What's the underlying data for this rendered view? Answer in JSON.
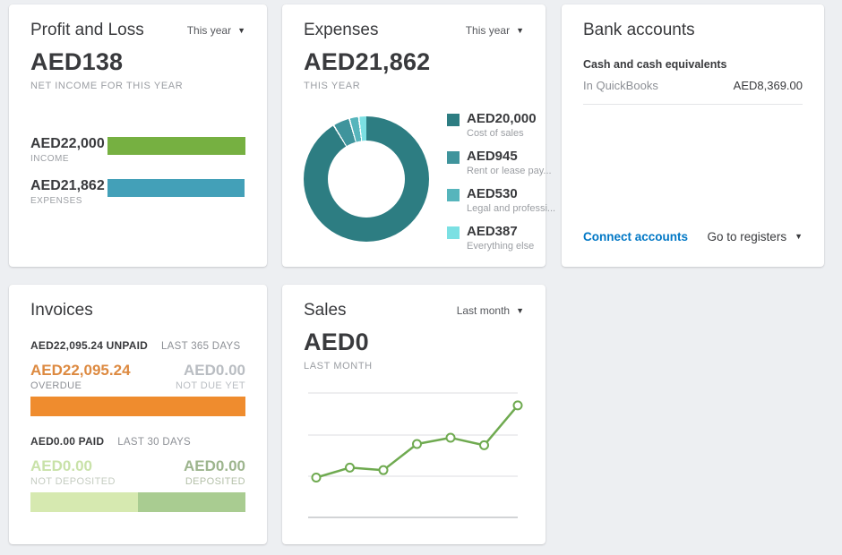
{
  "icons": {
    "dropdown": "▼"
  },
  "colors": {
    "background": "#edeff2",
    "link_blue": "#0077c5",
    "text_dark": "#393a3d",
    "text_gray": "#8d9096"
  },
  "profit_loss": {
    "title": "Profit and Loss",
    "period_selector": "This year",
    "net_income_value": "AED138",
    "net_income_label": "NET INCOME FOR THIS YEAR",
    "chart_data": {
      "type": "bar",
      "categories": [
        "INCOME",
        "EXPENSES"
      ],
      "values": [
        22000,
        21862
      ],
      "value_labels": [
        "AED22,000",
        "AED21,862"
      ],
      "colors": [
        "#76b041",
        "#43a0b8"
      ],
      "xlim": [
        0,
        22000
      ]
    }
  },
  "expenses": {
    "title": "Expenses",
    "period_selector": "This year",
    "total_value": "AED21,862",
    "total_label": "THIS YEAR",
    "chart_data": {
      "type": "pie",
      "style": "donut",
      "labels": [
        "Cost of sales",
        "Rent or lease pay...",
        "Legal and professi...",
        "Everything else"
      ],
      "values": [
        20000,
        945,
        530,
        387
      ],
      "value_labels": [
        "AED20,000",
        "AED945",
        "AED530",
        "AED387"
      ],
      "colors": [
        "#2d7d82",
        "#3f949c",
        "#56b5bc",
        "#7be0e3"
      ],
      "legend_position": "right"
    }
  },
  "bank_accounts": {
    "title": "Bank accounts",
    "account_name": "Cash and cash equivalents",
    "balance_source": "In QuickBooks",
    "balance_value": "AED8,369.00",
    "connect_link": "Connect accounts",
    "registers_link": "Go to registers"
  },
  "invoices": {
    "title": "Invoices",
    "unpaid_summary": "AED22,095.24 UNPAID",
    "unpaid_period": "LAST 365 DAYS",
    "overdue_value": "AED22,095.24",
    "overdue_label": "OVERDUE",
    "not_due_value": "AED0.00",
    "not_due_label": "NOT DUE YET",
    "paid_summary": "AED0.00 PAID",
    "paid_period": "LAST 30 DAYS",
    "not_deposited_value": "AED0.00",
    "not_deposited_label": "NOT DEPOSITED",
    "deposited_value": "AED0.00",
    "deposited_label": "DEPOSITED",
    "chart_data": {
      "type": "bar",
      "bars": [
        {
          "name": "unpaid",
          "segments": [
            {
              "label": "OVERDUE",
              "value": 22095.24,
              "color": "#ef8c2e"
            },
            {
              "label": "NOT DUE YET",
              "value": 0,
              "color": "#f5f6f7"
            }
          ]
        },
        {
          "name": "paid",
          "segments": [
            {
              "label": "NOT DEPOSITED",
              "value": 0,
              "color": "#d6e9b0"
            },
            {
              "label": "DEPOSITED",
              "value": 0,
              "color": "#a9cc91"
            }
          ]
        }
      ]
    }
  },
  "sales": {
    "title": "Sales",
    "period_selector": "Last month",
    "total_value": "AED0",
    "total_label": "LAST MONTH",
    "chart_data": {
      "type": "line",
      "x": [
        1,
        2,
        3,
        4,
        5,
        6,
        7
      ],
      "values": [
        32,
        40,
        38,
        59,
        64,
        58,
        90
      ],
      "ylim": [
        0,
        100
      ],
      "axis_labels_visible": false,
      "grid": true,
      "color": "#6faa50"
    }
  }
}
